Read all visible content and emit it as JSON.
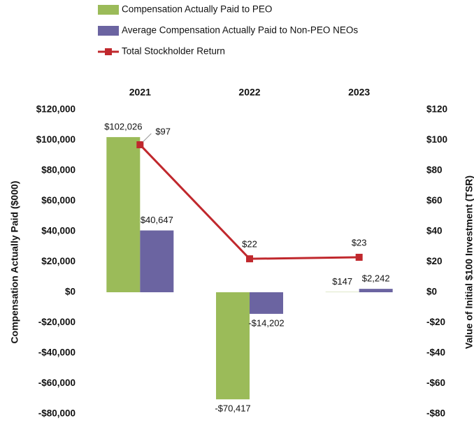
{
  "chart_data": {
    "type": "bar",
    "categories": [
      "2021",
      "2022",
      "2023"
    ],
    "series": [
      {
        "name": "Compensation Actually Paid to PEO",
        "color": "#9bbb59",
        "values": [
          102026,
          -70417,
          147
        ],
        "value_labels": [
          "$102,026",
          "-$70,417",
          "$147"
        ]
      },
      {
        "name": "Average Compensation Actually Paid to Non-PEO NEOs",
        "color": "#6b64a1",
        "values": [
          40647,
          -14202,
          2242
        ],
        "value_labels": [
          "$40,647",
          "-$14,202",
          "$2,242"
        ]
      },
      {
        "name": "Total Stockholder Return",
        "type": "line",
        "axis": "y2",
        "color": "#c0282d",
        "values": [
          97,
          22,
          23
        ],
        "value_labels": [
          "$97",
          "$22",
          "$23"
        ]
      }
    ],
    "ylabel": "Compensation Actually Paid ($000)",
    "y2label": "Value of Initial $100 Investment (TSR)",
    "ylim": [
      -80000,
      120000
    ],
    "yticks": [
      {
        "value": 120000,
        "label": "$120,000"
      },
      {
        "value": 100000,
        "label": "$100,000"
      },
      {
        "value": 80000,
        "label": "$80,000"
      },
      {
        "value": 60000,
        "label": "$60,000"
      },
      {
        "value": 40000,
        "label": "$40,000"
      },
      {
        "value": 20000,
        "label": "$20,000"
      },
      {
        "value": 0,
        "label": "$0"
      },
      {
        "value": -20000,
        "label": "-$20,000"
      },
      {
        "value": -40000,
        "label": "-$40,000"
      },
      {
        "value": -60000,
        "label": "-$60,000"
      },
      {
        "value": -80000,
        "label": "-$80,000"
      }
    ],
    "y2lim": [
      -80,
      120
    ],
    "y2ticks": [
      {
        "value": 120,
        "label": "$120"
      },
      {
        "value": 100,
        "label": "$100"
      },
      {
        "value": 80,
        "label": "$80"
      },
      {
        "value": 60,
        "label": "$60"
      },
      {
        "value": 40,
        "label": "$40"
      },
      {
        "value": 20,
        "label": "$20"
      },
      {
        "value": 0,
        "label": "$0"
      },
      {
        "value": -20,
        "label": "-$20"
      },
      {
        "value": -40,
        "label": "-$40"
      },
      {
        "value": -60,
        "label": "-$60"
      },
      {
        "value": -80,
        "label": "-$80"
      }
    ],
    "legend": "top-left"
  }
}
